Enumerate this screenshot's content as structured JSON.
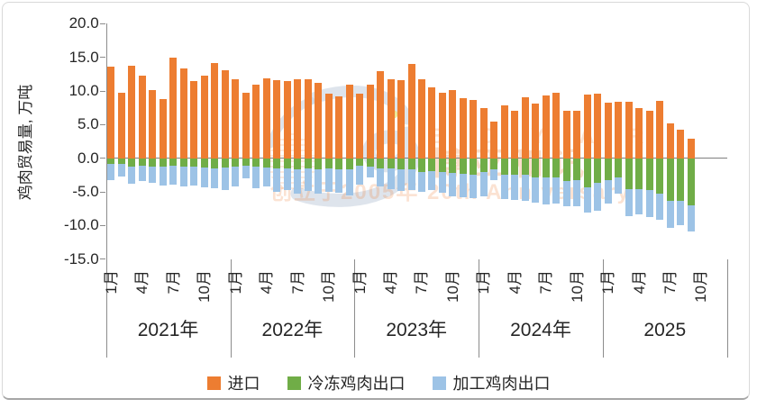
{
  "y_axis": {
    "title": "鸡肉贸易量, 万吨",
    "ticks": [
      "20.0",
      "15.0",
      "10.0",
      "5.0",
      "0.0",
      "-5.0",
      "-10.0",
      "-15.0"
    ]
  },
  "x_axis": {
    "month_labels": [
      "1月",
      "4月",
      "7月",
      "10月"
    ],
    "year_groups": [
      {
        "label": "2021年",
        "months": 12
      },
      {
        "label": "2022年",
        "months": 12
      },
      {
        "label": "2023年",
        "months": 12
      },
      {
        "label": "2024年",
        "months": 12
      },
      {
        "label": "2025",
        "months": 9
      }
    ]
  },
  "chart_data": {
    "type": "bar",
    "stacked": true,
    "ylabel": "鸡肉贸易量, 万吨",
    "ylim": [
      -15.0,
      20.0
    ],
    "ytick_step": 5.0,
    "grid": "zero-line-and-year-separators-only",
    "legend_position": "bottom-center",
    "categories_note": "monthly values Jan 2021 - Sep 2025",
    "series": [
      {
        "name": "进口",
        "color": "#ED7D31",
        "values": [
          13.6,
          9.7,
          13.7,
          12.3,
          10.1,
          8.8,
          14.9,
          13.3,
          11.5,
          12.3,
          14.1,
          13.1,
          11.7,
          9.8,
          10.9,
          11.9,
          11.6,
          11.5,
          11.8,
          11.7,
          11.2,
          9.6,
          9.2,
          11.0,
          9.6,
          11.0,
          13.0,
          11.8,
          11.6,
          14.0,
          11.7,
          10.6,
          9.7,
          10.1,
          9.0,
          8.7,
          7.4,
          5.5,
          7.9,
          7.0,
          9.1,
          8.1,
          9.4,
          9.8,
          7.0,
          7.1,
          9.5,
          9.6,
          8.2,
          8.4,
          8.4,
          7.5,
          7.0,
          8.5,
          5.2,
          4.3,
          2.9
        ]
      },
      {
        "name": "冷冻鸡肉出口",
        "color": "#70AD47",
        "values": [
          -0.9,
          -0.9,
          -1.2,
          -1.1,
          -1.2,
          -1.2,
          -1.1,
          -1.3,
          -1.2,
          -1.4,
          -1.5,
          -1.4,
          -1.3,
          -1.1,
          -1.2,
          -1.4,
          -1.5,
          -1.5,
          -1.6,
          -1.5,
          -1.6,
          -1.5,
          -1.6,
          -1.7,
          -1.1,
          -1.3,
          -1.5,
          -1.5,
          -1.6,
          -1.6,
          -2.1,
          -1.9,
          -2.1,
          -2.2,
          -2.3,
          -2.5,
          -2.1,
          -1.6,
          -2.5,
          -2.5,
          -2.5,
          -2.8,
          -2.9,
          -2.9,
          -3.4,
          -3.3,
          -4.3,
          -3.7,
          -3.3,
          -2.8,
          -4.6,
          -4.6,
          -4.7,
          -5.3,
          -6.4,
          -6.4,
          -7.0
        ]
      },
      {
        "name": "加工鸡肉出口",
        "color": "#9DC3E6",
        "values": [
          -2.4,
          -1.8,
          -2.6,
          -2.3,
          -2.5,
          -2.9,
          -2.8,
          -2.9,
          -2.8,
          -2.9,
          -2.9,
          -3.3,
          -2.9,
          -1.9,
          -3.2,
          -2.8,
          -3.5,
          -3.2,
          -3.7,
          -3.4,
          -3.6,
          -3.5,
          -3.5,
          -3.8,
          -2.8,
          -1.5,
          -2.7,
          -3.1,
          -3.2,
          -3.1,
          -2.9,
          -2.8,
          -3.0,
          -3.5,
          -3.5,
          -3.5,
          -3.5,
          -1.7,
          -3.6,
          -3.7,
          -3.8,
          -3.8,
          -4.0,
          -3.9,
          -3.8,
          -3.8,
          -3.8,
          -4.1,
          -3.5,
          -2.5,
          -4.0,
          -3.8,
          -4.1,
          -3.9,
          -3.9,
          -3.6,
          -3.9
        ]
      }
    ]
  },
  "legend": {
    "items": [
      {
        "label": "进口",
        "color": "#ED7D31"
      },
      {
        "label": "冷冻鸡肉出口",
        "color": "#70AD47"
      },
      {
        "label": "加工鸡肉出口",
        "color": "#9DC3E6"
      }
    ]
  },
  "watermark": {
    "brand_en": "B O Y A R",
    "brand_cn": "博亚和讯",
    "tagline": "创立于2005年 20th Anniversary"
  }
}
